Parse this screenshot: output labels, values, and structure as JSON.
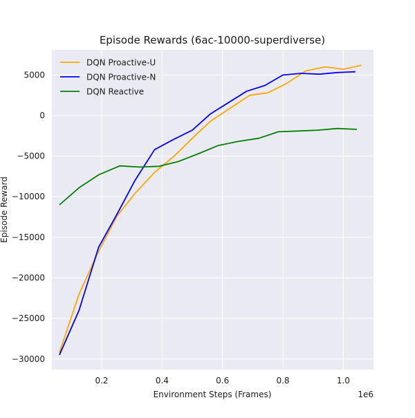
{
  "chart_data": {
    "type": "line",
    "title": "Episode Rewards (6ac-10000-superdiverse)",
    "xlabel": "Environment Steps (Frames)",
    "ylabel": "Episode Reward",
    "x_scale_label": "1e6",
    "xlim": [
      0.035,
      1.1
    ],
    "ylim": [
      -31300,
      8100
    ],
    "xticks": [
      0.2,
      0.4,
      0.6,
      0.8,
      1.0
    ],
    "xtick_labels": [
      "0.2",
      "0.4",
      "0.6",
      "0.8",
      "1.0"
    ],
    "yticks": [
      -30000,
      -25000,
      -20000,
      -15000,
      -10000,
      -5000,
      0,
      5000
    ],
    "ytick_labels": [
      "−30000",
      "−25000",
      "−20000",
      "−15000",
      "−10000",
      "−5000",
      "0",
      "5000"
    ],
    "grid": true,
    "legend_position": "top-left",
    "series": [
      {
        "name": "DQN Proactive-U",
        "color": "#ffa500",
        "x": [
          0.06,
          0.125,
          0.19,
          0.25,
          0.31,
          0.375,
          0.44,
          0.5,
          0.56,
          0.625,
          0.69,
          0.75,
          0.81,
          0.875,
          0.94,
          1.0,
          1.06
        ],
        "y": [
          -29200,
          -22000,
          -16700,
          -12400,
          -9600,
          -7000,
          -5000,
          -2800,
          -700,
          900,
          2500,
          2800,
          3900,
          5500,
          6000,
          5700,
          6200
        ]
      },
      {
        "name": "DQN Proactive-N",
        "color": "#0000ff",
        "x": [
          0.06,
          0.125,
          0.19,
          0.25,
          0.31,
          0.375,
          0.435,
          0.5,
          0.56,
          0.62,
          0.68,
          0.74,
          0.8,
          0.86,
          0.92,
          0.98,
          1.04
        ],
        "y": [
          -29500,
          -24000,
          -16200,
          -12200,
          -8000,
          -4200,
          -3000,
          -1800,
          200,
          1600,
          3000,
          3700,
          5000,
          5200,
          5100,
          5300,
          5400
        ]
      },
      {
        "name": "DQN Reactive",
        "color": "#008000",
        "x": [
          0.06,
          0.125,
          0.19,
          0.26,
          0.325,
          0.39,
          0.455,
          0.52,
          0.585,
          0.65,
          0.72,
          0.785,
          0.85,
          0.915,
          0.98,
          1.045
        ],
        "y": [
          -11000,
          -8900,
          -7300,
          -6200,
          -6350,
          -6250,
          -5650,
          -4700,
          -3700,
          -3200,
          -2800,
          -2000,
          -1900,
          -1800,
          -1600,
          -1700
        ]
      }
    ]
  }
}
